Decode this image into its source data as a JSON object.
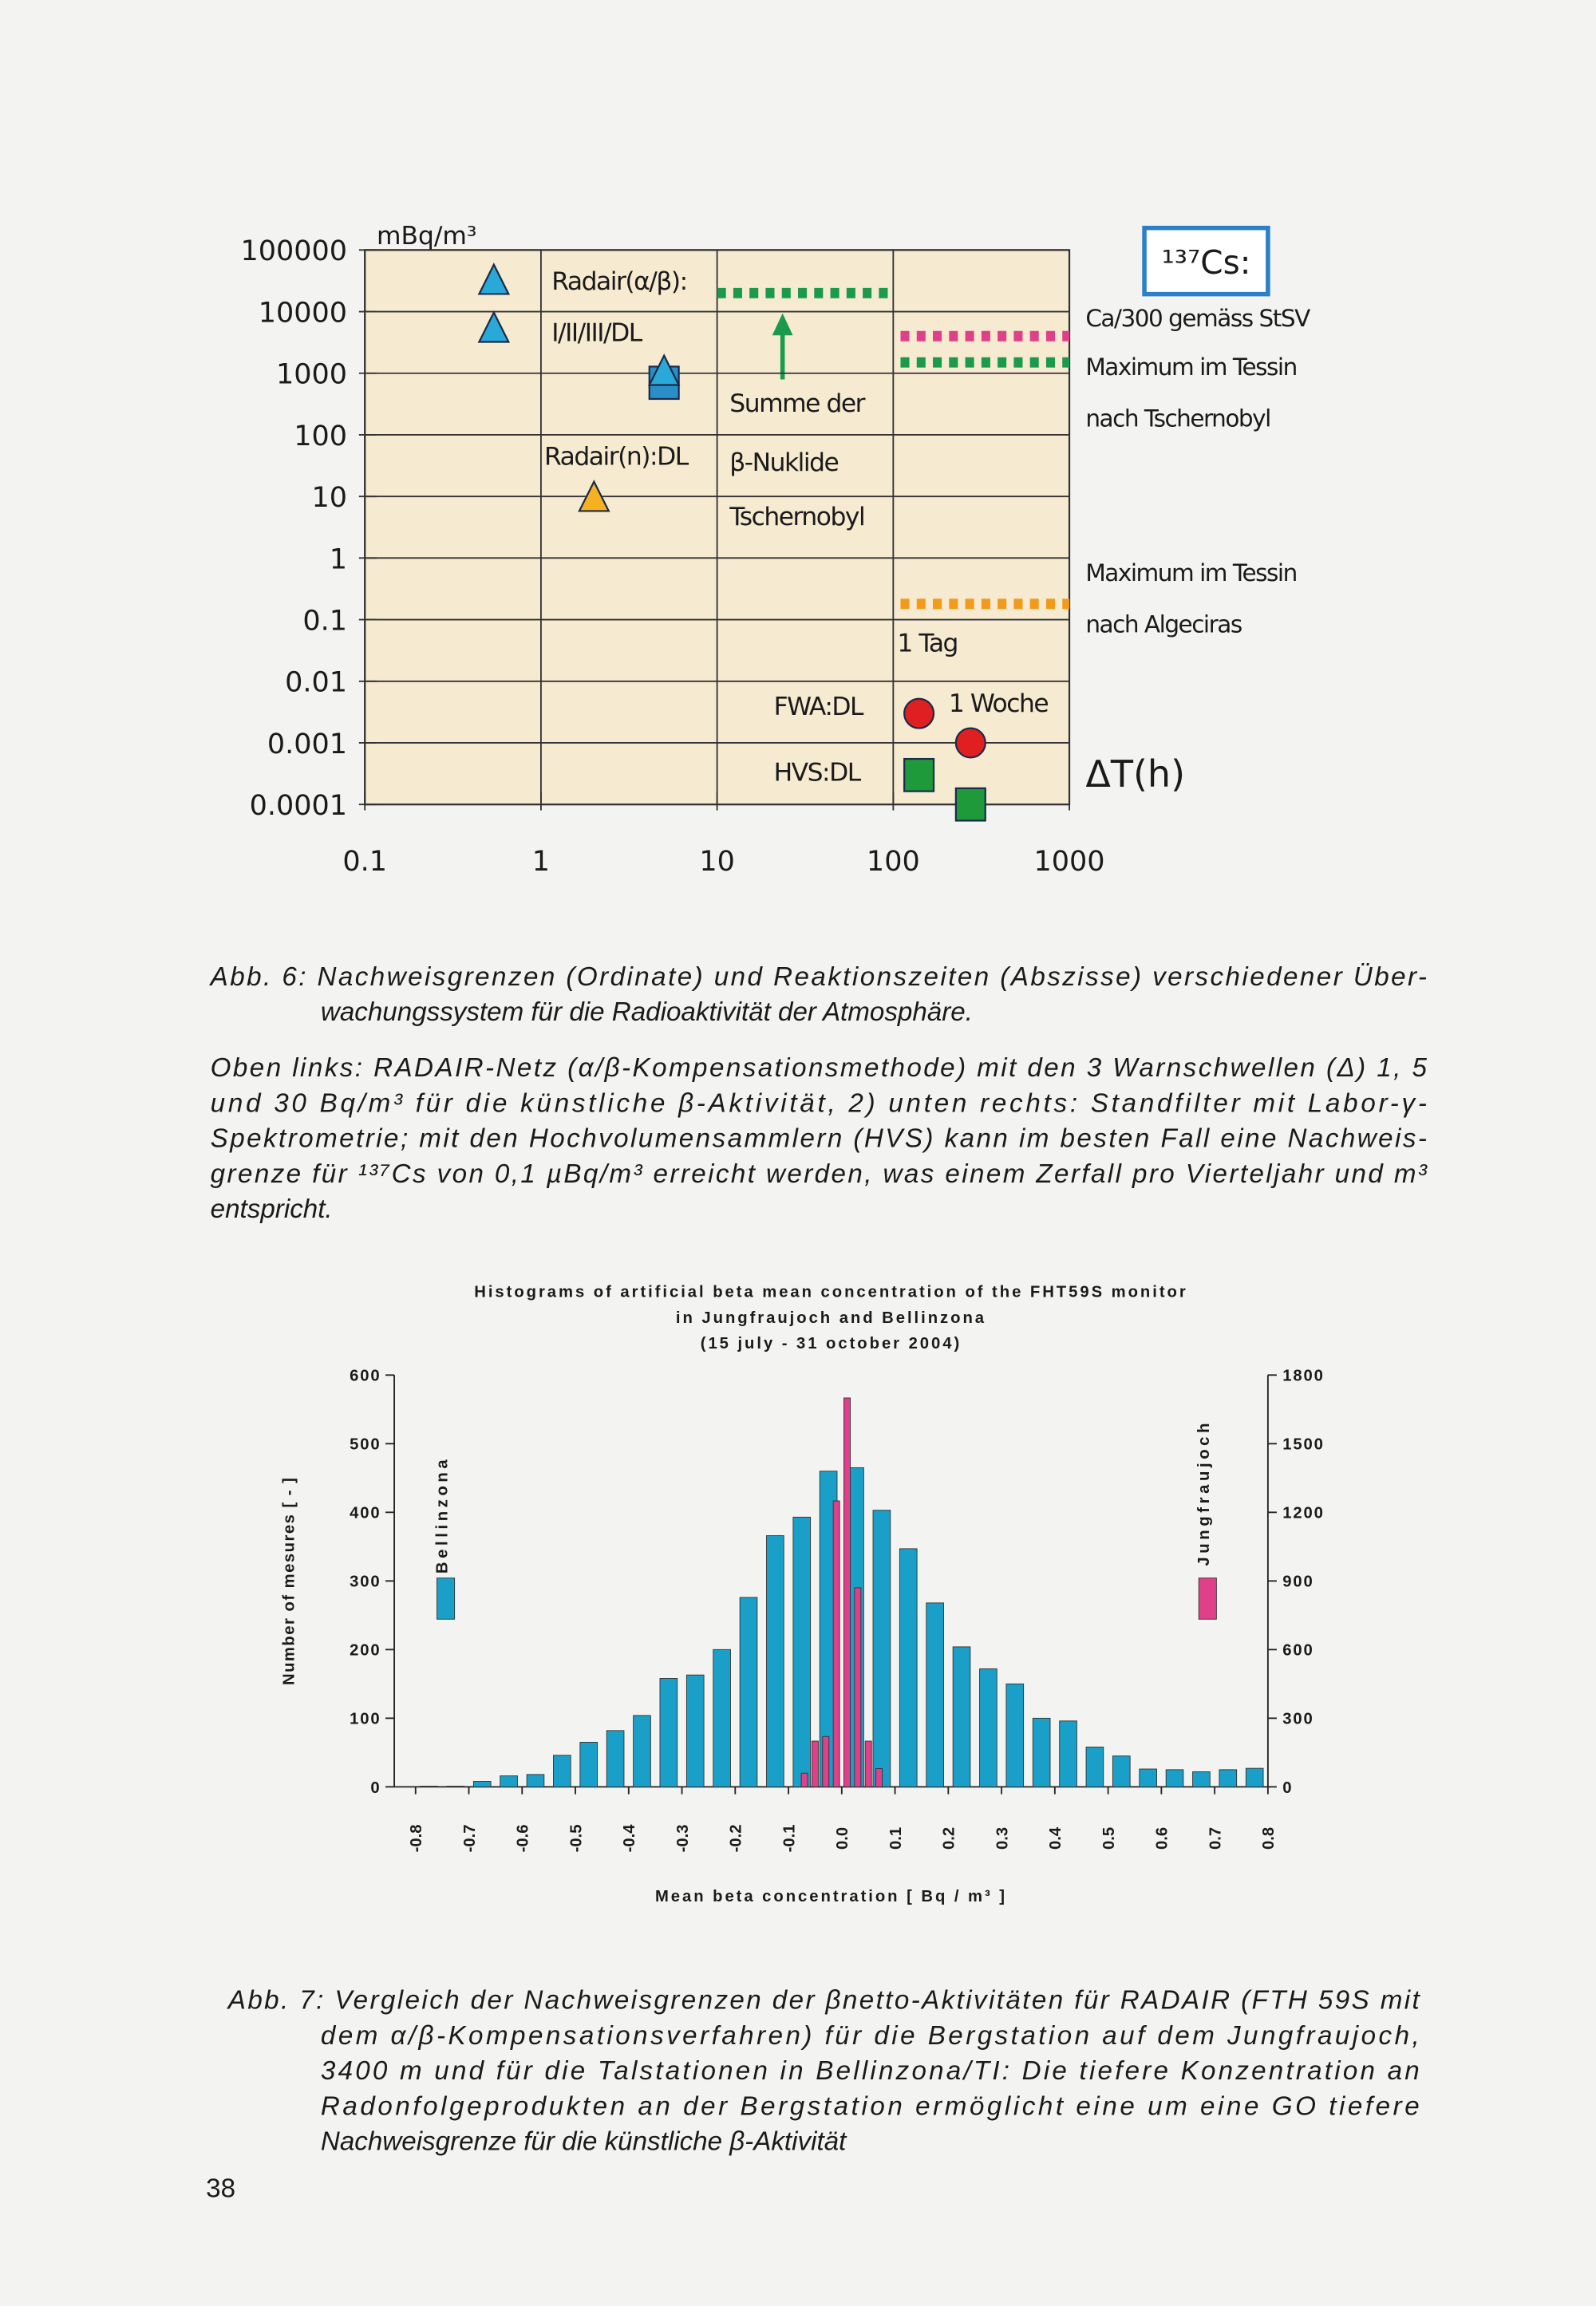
{
  "chart_data": [
    {
      "type": "scatter",
      "log_x": true,
      "log_y": true,
      "grid": true,
      "y_unit": "mBq/m³",
      "x_label": "ΔT(h)",
      "box_label": "¹³⁷Cs:",
      "box_color": "#2a7fc8",
      "xlim": [
        0.1,
        1000
      ],
      "ylim": [
        0.0001,
        100000
      ],
      "xticks": [
        0.1,
        1,
        10,
        100,
        1000
      ],
      "yticks": [
        100000,
        10000,
        1000,
        100,
        10,
        1,
        0.1,
        0.01,
        0.001,
        0.0001
      ],
      "series": [
        {
          "marker": "triangle",
          "color": "#29a9d8",
          "x": [
            0.54,
            0.54
          ],
          "values": [
            30000,
            5000
          ]
        },
        {
          "marker": "square",
          "color": "#2a8fc8",
          "x": [
            5
          ],
          "values": [
            700
          ]
        },
        {
          "marker": "triangle",
          "color": "#29a9d8",
          "x": [
            5
          ],
          "values": [
            1000
          ]
        },
        {
          "marker": "triangle",
          "color": "#f5b120",
          "x": [
            2
          ],
          "values": [
            9
          ]
        },
        {
          "marker": "dash",
          "color": "#1a9a4a",
          "x": [
            10,
            100
          ],
          "values": [
            20000,
            20000
          ]
        },
        {
          "marker": "dash",
          "color": "#e0408a",
          "x": [
            110,
            1000
          ],
          "values": [
            4000,
            4000
          ]
        },
        {
          "marker": "dash",
          "color": "#1a9a4a",
          "x": [
            110,
            1000
          ],
          "values": [
            1500,
            1500
          ]
        },
        {
          "marker": "dash",
          "color": "#f39a1a",
          "x": [
            110,
            1000
          ],
          "values": [
            0.18,
            0.18
          ]
        },
        {
          "marker": "circle",
          "color": "#e02020",
          "x": [
            140,
            275
          ],
          "values": [
            0.003,
            0.001
          ]
        },
        {
          "marker": "square",
          "color": "#1f9a3a",
          "x": [
            140,
            275
          ],
          "values": [
            0.0003,
            0.0001
          ]
        }
      ],
      "annotations": [
        {
          "text": "Radair(α/β):",
          "color": "#222222"
        },
        {
          "text": "I/II/III/DL",
          "color": "#222222"
        },
        {
          "text": "Radair(n):DL",
          "color": "#222222"
        },
        {
          "text": "Summe der",
          "color": "#1a9a4a"
        },
        {
          "text": "β-Nuklide",
          "color": "#1a9a4a"
        },
        {
          "text": "Tschernobyl",
          "color": "#1a9a4a"
        },
        {
          "text": "1 Tag",
          "color": "#222222"
        },
        {
          "text": "FWA:DL",
          "color": "#222222"
        },
        {
          "text": "1 Woche",
          "color": "#222222"
        },
        {
          "text": "HVS:DL",
          "color": "#222222"
        }
      ],
      "notes": [
        {
          "text": "Ca/300 gemäss StSV",
          "color": "#d8408a"
        },
        {
          "text": "Maximum im Tessin",
          "color": "#1a9a4a"
        },
        {
          "text": "nach Tschernobyl",
          "color": "#1a9a4a"
        },
        {
          "text": "Maximum im Tessin",
          "color": "#f08a10"
        },
        {
          "text": "nach Algeciras",
          "color": "#f08a10"
        }
      ]
    },
    {
      "type": "bar",
      "title": [
        "Histograms of artificial beta mean concentration of the FHT59S monitor",
        "in Jungfraujoch and Bellinzona",
        "(15 july - 31 october 2004)"
      ],
      "y_label": "Number of mesures [ - ]",
      "x_label": "Mean beta concentration [ Bq / m³ ]",
      "xlim": [
        -0.84,
        0.8
      ],
      "ylim": [
        0,
        600
      ],
      "y2lim": [
        0,
        1800
      ],
      "xticks": [
        -0.8,
        -0.7,
        -0.6,
        -0.5,
        -0.4,
        -0.3,
        -0.2,
        -0.1,
        {
          "value": 0,
          "label": "0.0"
        },
        0.1,
        0.2,
        0.3,
        0.4,
        0.5,
        0.6,
        0.7,
        0.8
      ],
      "yticks": [
        0,
        100,
        200,
        300,
        400,
        500,
        600
      ],
      "y2ticks": [
        0,
        300,
        600,
        900,
        1200,
        1500,
        1800
      ],
      "series": [
        {
          "name": "Bellinzona",
          "color": "#1aa0c8",
          "x": [
            -0.775,
            -0.725,
            -0.675,
            -0.625,
            -0.575,
            -0.525,
            -0.475,
            -0.425,
            -0.375,
            -0.325,
            -0.275,
            -0.225,
            -0.175,
            -0.125,
            -0.075,
            -0.025,
            0.025,
            0.075,
            0.125,
            0.175,
            0.225,
            0.275,
            0.325,
            0.375,
            0.425,
            0.475,
            0.525,
            0.575,
            0.625,
            0.675,
            0.725,
            0.775
          ],
          "values": [
            1,
            1,
            8,
            16,
            18,
            46,
            65,
            82,
            104,
            158,
            163,
            200,
            276,
            366,
            393,
            460,
            465,
            403,
            347,
            268,
            204,
            172,
            150,
            100,
            96,
            58,
            45,
            26,
            25,
            22,
            25,
            27
          ]
        },
        {
          "name": "Jungfraujoch",
          "color": "#e0408a",
          "axis": "y2",
          "x": [
            -0.07,
            -0.05,
            -0.03,
            -0.01,
            0.01,
            0.03,
            0.05,
            0.07
          ],
          "values": [
            60,
            200,
            220,
            1250,
            1700,
            870,
            200,
            80
          ]
        }
      ]
    }
  ],
  "captions": {
    "fig6": [
      "Abb. 6: Nachweisgrenzen (Ordinate) und Reaktionszeiten (Abszisse) verschiedener Über-",
      "wachungssystem für die Radioaktivität der Atmosphäre."
    ],
    "fig6_text": [
      "Oben links: RADAIR-Netz (α/β-Kompensationsmethode) mit den 3 Warnschwellen (Δ) 1, 5",
      "und 30 Bq/m³ für die künstliche β-Aktivität, 2) unten rechts: Standfilter mit Labor-γ-",
      "Spektrometrie; mit den Hochvolumensammlern (HVS) kann im besten Fall eine Nachweis-",
      "grenze für ¹³⁷Cs von 0,1 µBq/m³ erreicht werden, was einem Zerfall pro Vierteljahr und m³",
      "entspricht."
    ],
    "fig7": [
      "Abb. 7: Vergleich der Nachweisgrenzen der βnetto-Aktivitäten für RADAIR (FTH 59S mit",
      "dem α/β-Kompensationsverfahren) für die Bergstation auf dem Jungfraujoch,",
      "3400 m und für die Talstationen in Bellinzona/TI: Die tiefere Konzentration an",
      "Radonfolgeprodukten an der Bergstation ermöglicht eine um eine GO tiefere",
      "Nachweisgrenze für die künstliche β-Aktivität"
    ]
  },
  "page_number": "38"
}
